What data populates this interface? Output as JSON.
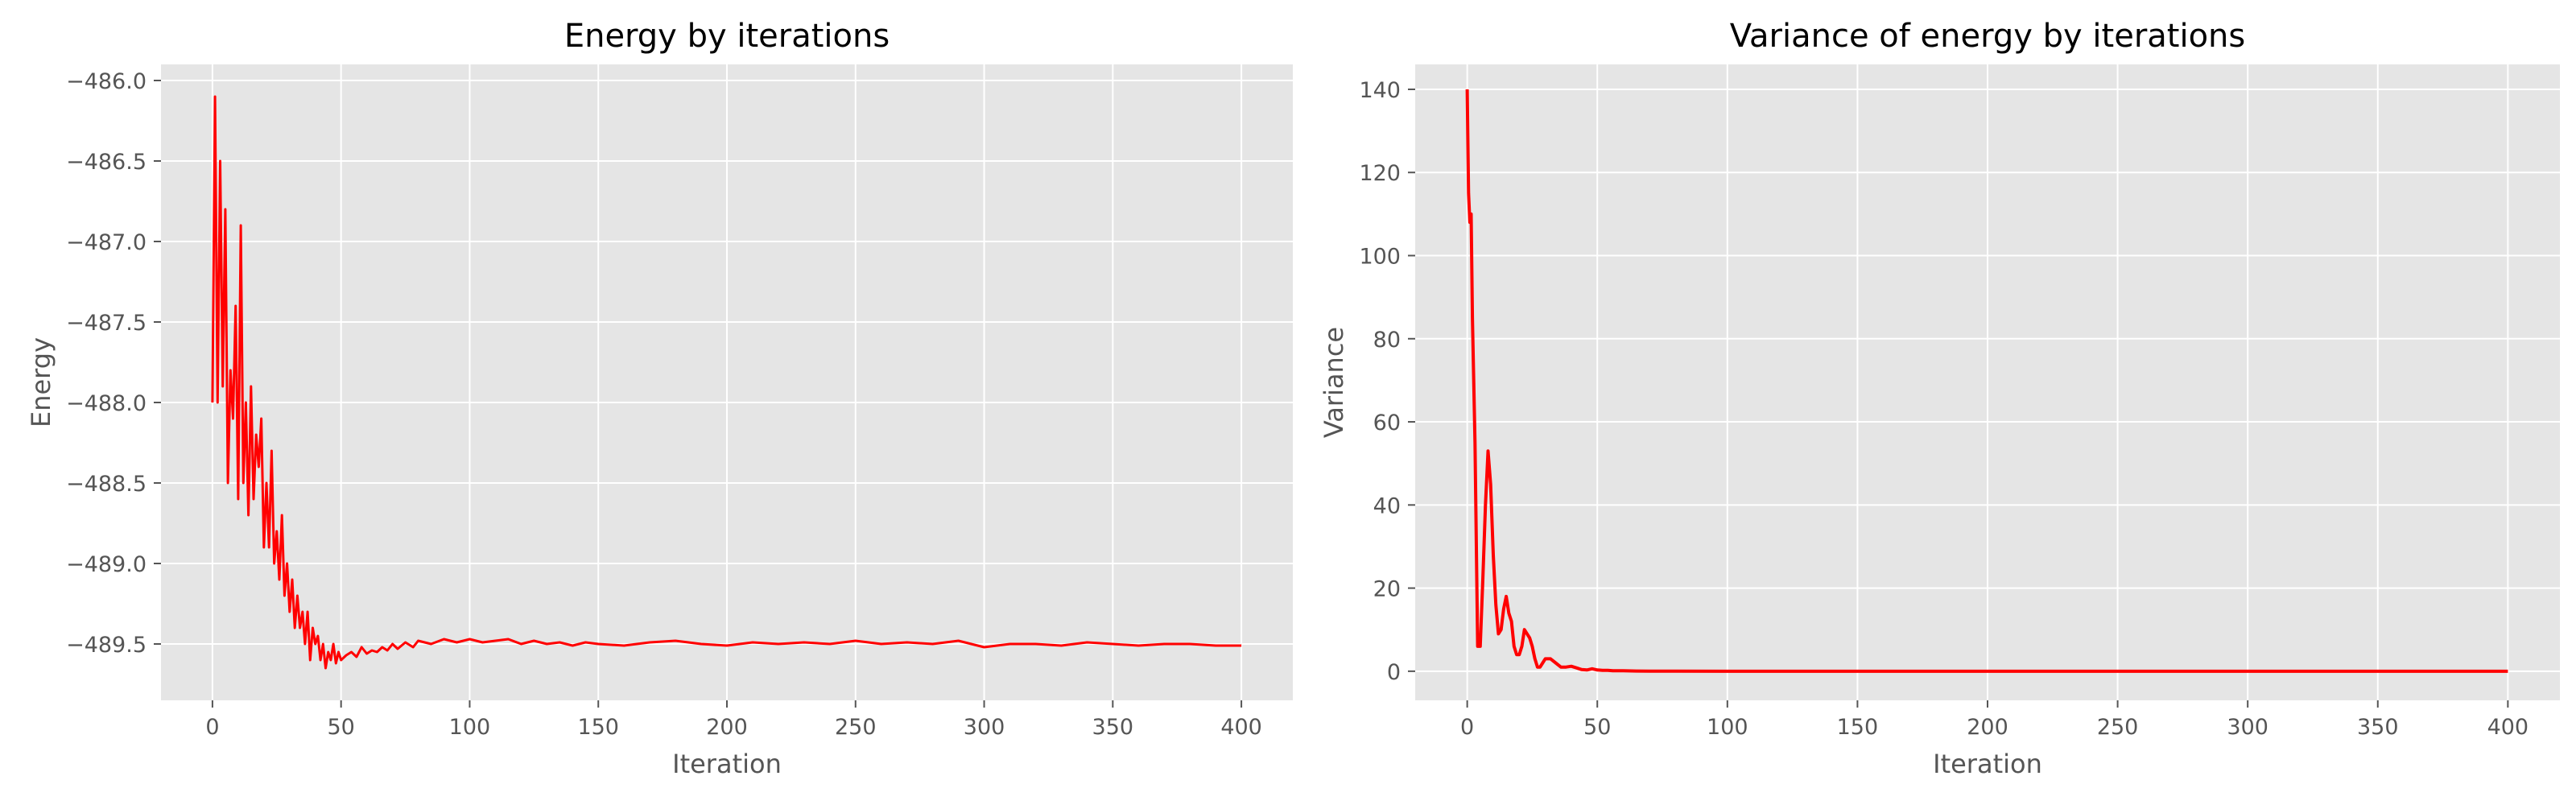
{
  "chart_data": [
    {
      "type": "line",
      "title": "Energy by iterations",
      "xlabel": "Iteration",
      "ylabel": "Energy",
      "xlim": [
        -20,
        420
      ],
      "ylim": [
        -489.85,
        -485.9
      ],
      "x_ticks": [
        0,
        50,
        100,
        150,
        200,
        250,
        300,
        350,
        400
      ],
      "y_ticks": [
        -486.0,
        -486.5,
        -487.0,
        -487.5,
        -488.0,
        -488.5,
        -489.0,
        -489.5
      ],
      "grid": true,
      "color": "#ff0000",
      "series": [
        {
          "x": [
            0,
            1,
            2,
            3,
            4,
            5,
            6,
            7,
            8,
            9,
            10,
            11,
            12,
            13,
            14,
            15,
            16,
            17,
            18,
            19,
            20,
            21,
            22,
            23,
            24,
            25,
            26,
            27,
            28,
            29,
            30,
            31,
            32,
            33,
            34,
            35,
            36,
            37,
            38,
            39,
            40,
            41,
            42,
            43,
            44,
            45,
            46,
            47,
            48,
            49,
            50,
            52,
            54,
            56,
            58,
            60,
            62,
            64,
            66,
            68,
            70,
            72,
            75,
            78,
            80,
            85,
            90,
            95,
            100,
            105,
            110,
            115,
            120,
            125,
            130,
            135,
            140,
            145,
            150,
            160,
            170,
            180,
            190,
            200,
            210,
            220,
            230,
            240,
            250,
            260,
            270,
            280,
            290,
            300,
            310,
            320,
            330,
            340,
            350,
            360,
            370,
            380,
            390,
            400
          ],
          "y": [
            -488.0,
            -486.1,
            -488.0,
            -486.5,
            -487.9,
            -486.8,
            -488.5,
            -487.8,
            -488.1,
            -487.4,
            -488.6,
            -486.9,
            -488.5,
            -488.0,
            -488.7,
            -487.9,
            -488.6,
            -488.2,
            -488.4,
            -488.1,
            -488.9,
            -488.5,
            -488.9,
            -488.3,
            -489.0,
            -488.8,
            -489.1,
            -488.7,
            -489.2,
            -489.0,
            -489.3,
            -489.1,
            -489.4,
            -489.2,
            -489.4,
            -489.3,
            -489.5,
            -489.3,
            -489.6,
            -489.4,
            -489.5,
            -489.45,
            -489.6,
            -489.5,
            -489.65,
            -489.55,
            -489.6,
            -489.5,
            -489.62,
            -489.55,
            -489.6,
            -489.57,
            -489.55,
            -489.58,
            -489.52,
            -489.56,
            -489.54,
            -489.55,
            -489.52,
            -489.54,
            -489.5,
            -489.53,
            -489.49,
            -489.52,
            -489.48,
            -489.5,
            -489.47,
            -489.49,
            -489.47,
            -489.49,
            -489.48,
            -489.47,
            -489.5,
            -489.48,
            -489.5,
            -489.49,
            -489.51,
            -489.49,
            -489.5,
            -489.51,
            -489.49,
            -489.48,
            -489.5,
            -489.51,
            -489.49,
            -489.5,
            -489.49,
            -489.5,
            -489.48,
            -489.5,
            -489.49,
            -489.5,
            -489.48,
            -489.52,
            -489.5,
            -489.5,
            -489.51,
            -489.49,
            -489.5,
            -489.51,
            -489.5,
            -489.5,
            -489.51,
            -489.51
          ]
        }
      ]
    },
    {
      "type": "line",
      "title": "Variance of energy by iterations",
      "xlabel": "Iteration",
      "ylabel": "Variance",
      "xlim": [
        -20,
        420
      ],
      "ylim": [
        -7,
        146
      ],
      "x_ticks": [
        0,
        50,
        100,
        150,
        200,
        250,
        300,
        350,
        400
      ],
      "y_ticks": [
        0,
        20,
        40,
        60,
        80,
        100,
        120,
        140
      ],
      "grid": true,
      "color": "#ff0000",
      "series": [
        {
          "x": [
            0,
            0.5,
            1,
            1.5,
            2,
            3,
            4,
            5,
            6,
            7,
            8,
            9,
            10,
            11,
            12,
            13,
            14,
            15,
            16,
            17,
            18,
            19,
            20,
            21,
            22,
            23,
            24,
            25,
            26,
            27,
            28,
            29,
            30,
            32,
            34,
            36,
            38,
            40,
            42,
            44,
            46,
            48,
            50,
            52,
            54,
            56,
            58,
            60,
            65,
            70,
            80,
            100,
            150,
            200,
            250,
            300,
            350,
            400
          ],
          "y": [
            140,
            115,
            108,
            110,
            85,
            55,
            6,
            6,
            22,
            40,
            53,
            45,
            28,
            16,
            9,
            10,
            15,
            18,
            14,
            12,
            6,
            4,
            4,
            6,
            10,
            9,
            8,
            6,
            3,
            1,
            1,
            2,
            3,
            3,
            2,
            1,
            1,
            1.2,
            0.8,
            0.4,
            0.3,
            0.6,
            0.3,
            0.2,
            0.2,
            0.1,
            0.1,
            0.1,
            0.05,
            0.02,
            0.01,
            0,
            0,
            0,
            0,
            0,
            0,
            0
          ]
        }
      ]
    }
  ]
}
